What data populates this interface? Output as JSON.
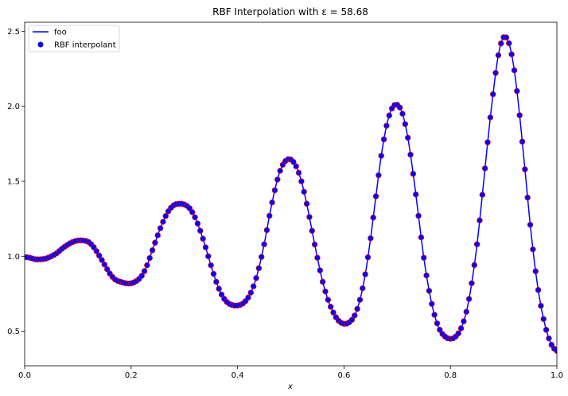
{
  "chart_data": {
    "type": "line",
    "title": "RBF Interpolation with ε = 58.68",
    "xlabel": "x",
    "ylabel": "",
    "xlim": [
      0,
      1
    ],
    "ylim": [
      0.27,
      2.56
    ],
    "x_ticks": [
      "0.0",
      "0.2",
      "0.4",
      "0.6",
      "0.8",
      "1.0"
    ],
    "y_ticks": [
      "0.5",
      "1.0",
      "1.5",
      "2.0",
      "2.5"
    ],
    "grid": false,
    "legend_position": "top-left",
    "legend": [
      "foo",
      "RBF interpolant"
    ],
    "series": [
      {
        "name": "foo",
        "style": "line",
        "color": "#0000ff",
        "x": [
          0.0,
          0.01,
          0.02,
          0.03,
          0.04,
          0.05,
          0.06,
          0.07,
          0.08,
          0.09,
          0.1,
          0.11,
          0.12,
          0.13,
          0.14,
          0.15,
          0.16,
          0.17,
          0.18,
          0.19,
          0.2,
          0.21,
          0.22,
          0.23,
          0.24,
          0.25,
          0.26,
          0.27,
          0.28,
          0.29,
          0.3,
          0.31,
          0.32,
          0.33,
          0.34,
          0.35,
          0.36,
          0.37,
          0.38,
          0.39,
          0.4,
          0.41,
          0.42,
          0.43,
          0.44,
          0.45,
          0.46,
          0.47,
          0.48,
          0.49,
          0.5,
          0.51,
          0.52,
          0.53,
          0.54,
          0.55,
          0.56,
          0.57,
          0.58,
          0.59,
          0.6,
          0.61,
          0.62,
          0.63,
          0.64,
          0.65,
          0.66,
          0.67,
          0.68,
          0.69,
          0.7,
          0.71,
          0.72,
          0.73,
          0.74,
          0.75,
          0.76,
          0.77,
          0.78,
          0.79,
          0.8,
          0.81,
          0.82,
          0.83,
          0.84,
          0.85,
          0.86,
          0.87,
          0.88,
          0.89,
          0.9,
          0.91,
          0.92,
          0.93,
          0.94,
          0.95,
          0.96,
          0.97,
          0.98,
          0.99,
          1.0
        ],
        "y": [
          0.995,
          0.99,
          0.98,
          0.98,
          0.985,
          1.0,
          1.02,
          1.05,
          1.075,
          1.095,
          1.105,
          1.105,
          1.095,
          1.06,
          1.005,
          0.945,
          0.885,
          0.845,
          0.83,
          0.82,
          0.82,
          0.835,
          0.87,
          0.94,
          1.04,
          1.14,
          1.23,
          1.3,
          1.34,
          1.35,
          1.345,
          1.32,
          1.26,
          1.17,
          1.06,
          0.94,
          0.83,
          0.745,
          0.695,
          0.675,
          0.672,
          0.685,
          0.725,
          0.8,
          0.92,
          1.08,
          1.27,
          1.44,
          1.57,
          1.635,
          1.645,
          1.6,
          1.5,
          1.35,
          1.17,
          0.99,
          0.83,
          0.71,
          0.625,
          0.57,
          0.55,
          0.56,
          0.605,
          0.71,
          0.88,
          1.12,
          1.4,
          1.67,
          1.87,
          1.985,
          2.01,
          1.95,
          1.79,
          1.55,
          1.27,
          0.99,
          0.77,
          0.61,
          0.51,
          0.465,
          0.45,
          0.465,
          0.52,
          0.63,
          0.82,
          1.08,
          1.41,
          1.76,
          2.08,
          2.34,
          2.46,
          2.42,
          2.24,
          1.94,
          1.58,
          1.21,
          0.9,
          0.67,
          0.51,
          0.41,
          0.37
        ]
      },
      {
        "name": "RBF interpolant",
        "style": "markers",
        "color": "#0000ff",
        "edge_color": "#ff0000",
        "n_points": 201
      }
    ]
  }
}
